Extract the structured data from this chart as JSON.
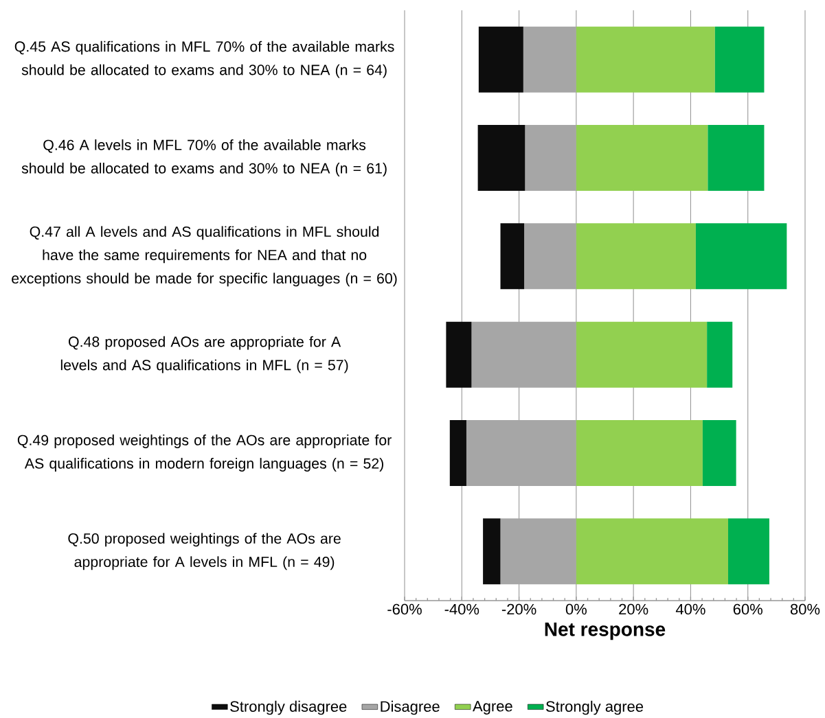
{
  "chart_data": {
    "type": "bar",
    "orientation": "horizontal",
    "stacked": true,
    "xlabel": "Net response",
    "categories": [
      "Q.45 AS qualifications in MFL 70% of the available marks should be allocated to exams and 30% to NEA (n = 64)",
      "Q.46 A levels in MFL 70% of the available marks should be allocated to exams and 30% to NEA (n = 61)",
      "Q.47 all A levels and AS qualifications in MFL should have the same requirements for NEA and that no exceptions should be made for specific languages (n = 60)",
      "Q.48 proposed AOs are appropriate for A levels and AS qualifications in MFL (n = 57)",
      "Q.49 proposed weightings of the AOs are appropriate for AS qualifications in modern foreign languages (n = 52)",
      "Q.50 proposed weightings of the AOs are appropriate for A levels in MFL (n = 49)"
    ],
    "series": [
      {
        "name": "Disagree",
        "color": "#a6a6a6",
        "values": [
          -18.5,
          -17.9,
          -18.2,
          -36.6,
          -38.4,
          -26.5
        ]
      },
      {
        "name": "Strongly disagree",
        "color": "#0d0d0d",
        "values": [
          -15.6,
          -16.5,
          -8.3,
          -8.9,
          -5.8,
          -6.1
        ]
      },
      {
        "name": "Agree",
        "color": "#92d050",
        "values": [
          48.5,
          46.0,
          41.8,
          45.7,
          44.2,
          53.1
        ]
      },
      {
        "name": "Strongly agree",
        "color": "#00b050",
        "values": [
          17.2,
          19.7,
          31.8,
          8.9,
          11.7,
          14.4
        ]
      }
    ],
    "xlim": [
      -60,
      80
    ],
    "xticks": [
      {
        "value": -60,
        "label": "-60%"
      },
      {
        "value": -40,
        "label": "-40%"
      },
      {
        "value": -20,
        "label": "-20%"
      },
      {
        "value": 0,
        "label": "0%"
      },
      {
        "value": 20,
        "label": "20%"
      },
      {
        "value": 40,
        "label": "40%"
      },
      {
        "value": 60,
        "label": "60%"
      },
      {
        "value": 80,
        "label": "80%"
      }
    ],
    "grid": "x",
    "legend": "bottom"
  }
}
